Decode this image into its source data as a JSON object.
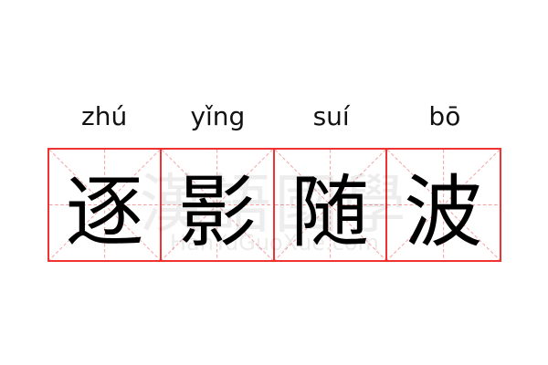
{
  "pinyin": [
    "zhú",
    "yǐng",
    "suí",
    "bō"
  ],
  "characters": [
    "逐",
    "影",
    "随",
    "波"
  ],
  "watermark": {
    "logo": "漢語國學",
    "site": "HanYuGuoXue.com"
  },
  "colors": {
    "grid_border": "#f03232",
    "guide_lines": "#f5a0a0"
  }
}
